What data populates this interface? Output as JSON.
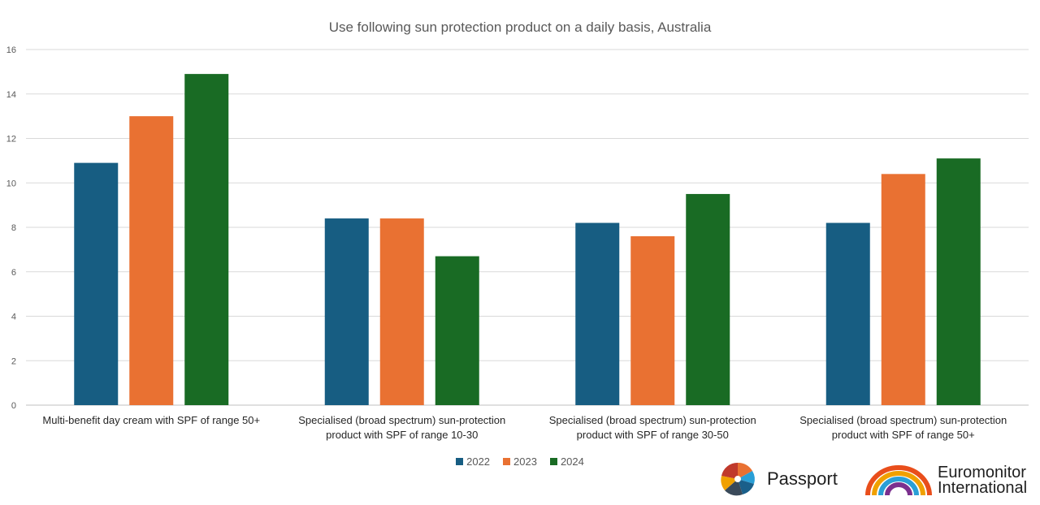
{
  "chart_data": {
    "type": "bar",
    "title": "Use following sun protection product on a daily basis, Australia",
    "categories": [
      [
        "Multi-benefit day cream with SPF of range 50+"
      ],
      [
        "Specialised (broad spectrum) sun-protection",
        "product with SPF of range 10-30"
      ],
      [
        "Specialised (broad spectrum) sun-protection",
        "product with SPF of range 30-50"
      ],
      [
        "Specialised (broad spectrum) sun-protection",
        "product with SPF of range 50+"
      ]
    ],
    "series": [
      {
        "name": "2022",
        "color": "#175d82",
        "values": [
          10.9,
          8.4,
          8.2,
          8.2
        ]
      },
      {
        "name": "2023",
        "color": "#e97132",
        "values": [
          13.0,
          8.4,
          7.6,
          10.4
        ]
      },
      {
        "name": "2024",
        "color": "#196b24",
        "values": [
          14.9,
          6.7,
          9.5,
          11.1
        ]
      }
    ],
    "ylim": [
      0,
      16
    ],
    "yticks": [
      0,
      2,
      4,
      6,
      8,
      10,
      12,
      14,
      16
    ],
    "grid": true,
    "legend_position": "bottom"
  },
  "logos": {
    "passport": "Passport",
    "euromonitor_line1": "Euromonitor",
    "euromonitor_line2": "International"
  }
}
